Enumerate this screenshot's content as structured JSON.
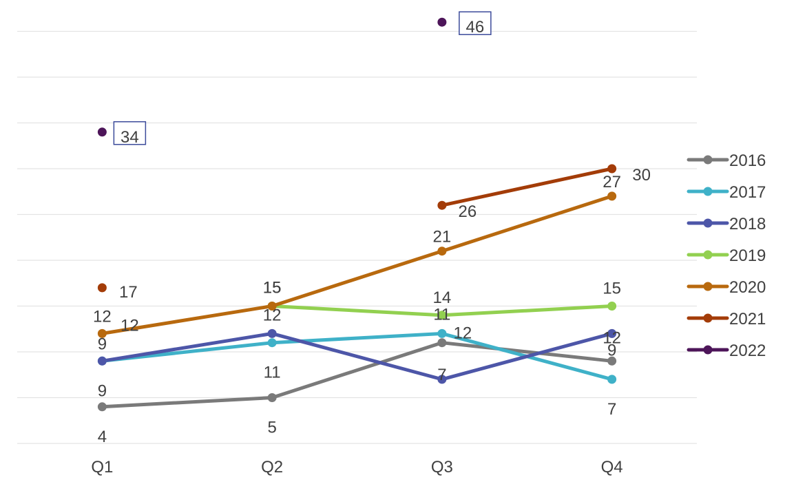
{
  "chart_data": {
    "type": "line",
    "title": "",
    "xlabel": "",
    "ylabel": "",
    "categories": [
      "Q1",
      "Q2",
      "Q3",
      "Q4"
    ],
    "ylim": [
      0,
      50
    ],
    "grid": true,
    "y_tick_labels_shown": false,
    "legend_position": "right",
    "series": [
      {
        "name": "2016",
        "color": "#7a7a7a",
        "values": [
          4,
          5,
          11,
          9
        ],
        "labels": [
          "4",
          "5",
          "11",
          "9"
        ]
      },
      {
        "name": "2017",
        "color": "#3fb1c8",
        "values": [
          9,
          11,
          12,
          7
        ],
        "labels": [
          "9",
          "11",
          "12",
          "7"
        ]
      },
      {
        "name": "2018",
        "color": "#4d56a8",
        "values": [
          9,
          12,
          7,
          12
        ],
        "labels": [
          "9",
          "12",
          "7",
          "12"
        ]
      },
      {
        "name": "2019",
        "color": "#92d050",
        "values": [
          null,
          15,
          14,
          15
        ],
        "labels": [
          "",
          "15",
          "14",
          "15"
        ]
      },
      {
        "name": "2020",
        "color": "#b8690e",
        "values": [
          12,
          15,
          21,
          27
        ],
        "labels": [
          "12",
          "15",
          "21",
          "27"
        ]
      },
      {
        "name": "2021",
        "color": "#a33c08",
        "values": [
          17,
          null,
          26,
          30
        ],
        "labels": [
          "17",
          "",
          "26",
          "30"
        ]
      },
      {
        "name": "2022",
        "color": "#4d1559",
        "values": [
          34,
          null,
          46,
          null
        ],
        "labels": [
          "34",
          "",
          "46",
          ""
        ],
        "boxed_labels": true
      }
    ]
  }
}
